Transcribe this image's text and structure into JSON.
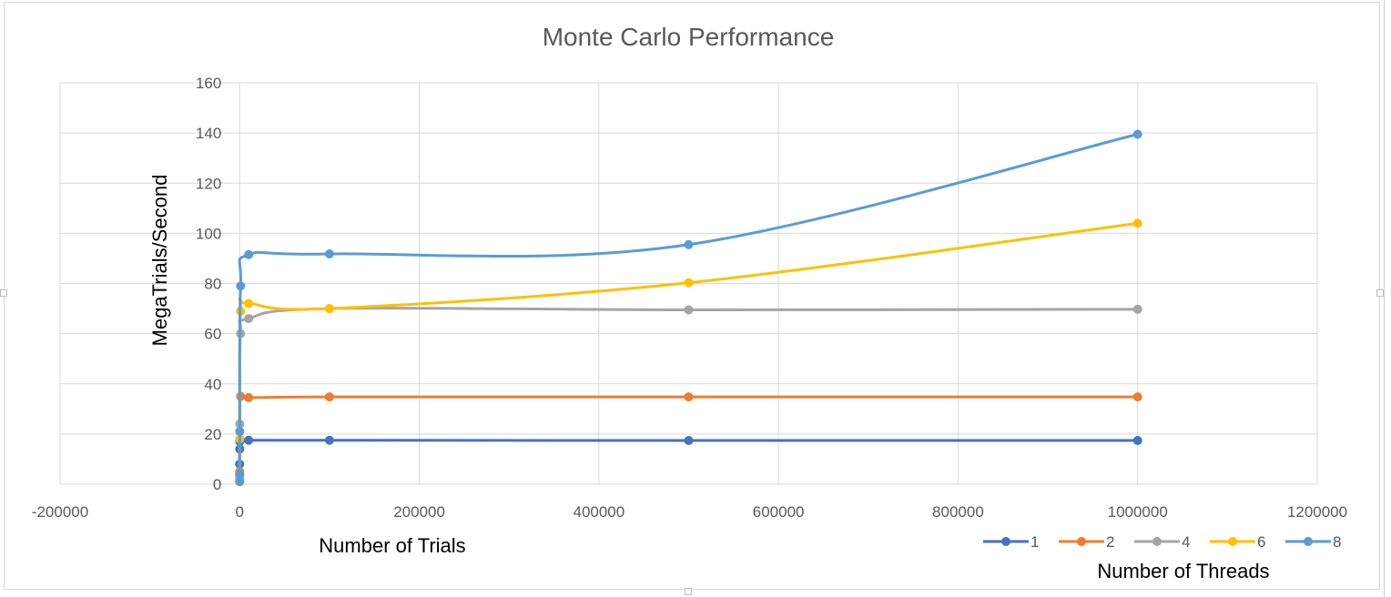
{
  "chart_data": {
    "type": "scatter",
    "title": "Monte Carlo Performance",
    "xlabel": "Number of Trials",
    "ylabel": "MegaTrials/Second",
    "legend_title": "Number of Threads",
    "legend_position": "bottom-right",
    "xlim": [
      -200000,
      1200000
    ],
    "ylim": [
      0,
      160
    ],
    "x_ticks": [
      -200000,
      0,
      200000,
      400000,
      600000,
      800000,
      1000000,
      1200000
    ],
    "y_ticks": [
      0,
      20,
      40,
      60,
      80,
      100,
      120,
      140,
      160
    ],
    "x_tick_labels": [
      "-200000",
      "0",
      "200000",
      "400000",
      "600000",
      "800000",
      "1000000",
      "1200000"
    ],
    "y_tick_labels": [
      "0",
      "20",
      "40",
      "60",
      "80",
      "100",
      "120",
      "140",
      "160"
    ],
    "grid": true,
    "smooth_lines": true,
    "series": [
      {
        "name": "1",
        "color": "#4472C4",
        "x": [
          1,
          10,
          100,
          1000,
          10000,
          100000,
          500000,
          1000000
        ],
        "y": [
          8,
          14,
          17,
          17.5,
          17.5,
          17.5,
          17.4,
          17.4
        ]
      },
      {
        "name": "2",
        "color": "#ED7D31",
        "x": [
          1,
          10,
          100,
          1000,
          10000,
          100000,
          500000,
          1000000
        ],
        "y": [
          2,
          5,
          21,
          35,
          34.5,
          34.8,
          34.8,
          34.8
        ]
      },
      {
        "name": "4",
        "color": "#A5A5A5",
        "x": [
          1,
          10,
          100,
          1000,
          10000,
          100000,
          500000,
          1000000
        ],
        "y": [
          1,
          3,
          24,
          60,
          66,
          70,
          69.5,
          69.7
        ]
      },
      {
        "name": "6",
        "color": "#FFC000",
        "x": [
          1,
          10,
          100,
          1000,
          10000,
          100000,
          500000,
          1000000
        ],
        "y": [
          1,
          4,
          18,
          69,
          72,
          70,
          80.3,
          104
        ]
      },
      {
        "name": "8",
        "color": "#5B9BD5",
        "x": [
          1,
          10,
          100,
          1000,
          10000,
          100000,
          500000,
          1000000
        ],
        "y": [
          1,
          4,
          21,
          79,
          91.5,
          91.8,
          95.5,
          139.5
        ]
      }
    ]
  }
}
